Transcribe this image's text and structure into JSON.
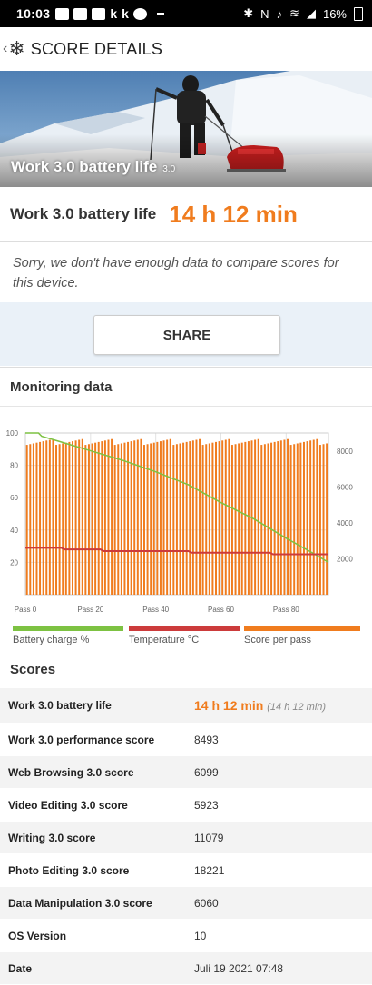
{
  "status_bar": {
    "time": "10:03",
    "battery_percent": "16%"
  },
  "app_bar": {
    "title": "SCORE DETAILS"
  },
  "hero": {
    "caption": "Work 3.0 battery life",
    "version": "3.0"
  },
  "score": {
    "label": "Work 3.0 battery life",
    "value": "14 h 12 min"
  },
  "notice": "Sorry, we don't have enough data to compare scores for this device.",
  "share_label": "SHARE",
  "monitoring": {
    "title": "Monitoring data"
  },
  "chart_data": {
    "type": "bar",
    "x_tick_labels": [
      "Pass 0",
      "Pass 20",
      "Pass 40",
      "Pass 60",
      "Pass 80"
    ],
    "x_ticks": [
      0,
      20,
      40,
      60,
      80
    ],
    "x_range": [
      0,
      93
    ],
    "left_axis_ticks": [
      "100",
      "80",
      "60",
      "40",
      "20"
    ],
    "left_axis_values": [
      100,
      80,
      60,
      40,
      20
    ],
    "left_ylim": [
      0,
      100
    ],
    "right_axis_ticks": [
      "8000",
      "6000",
      "4000",
      "2000"
    ],
    "right_axis_values": [
      8000,
      6000,
      4000,
      2000
    ],
    "right_ylim": [
      0,
      9000
    ],
    "grid": true,
    "legend_placement": "bottom",
    "series": [
      {
        "name": "Battery charge %",
        "type": "line",
        "axis": "left",
        "color": "#7dc242",
        "points": [
          [
            0,
            100
          ],
          [
            4,
            100
          ],
          [
            5,
            98
          ],
          [
            10,
            95
          ],
          [
            20,
            89
          ],
          [
            30,
            83
          ],
          [
            40,
            76
          ],
          [
            50,
            68
          ],
          [
            60,
            57
          ],
          [
            70,
            47
          ],
          [
            80,
            35
          ],
          [
            88,
            26
          ],
          [
            93,
            20
          ]
        ]
      },
      {
        "name": "Temperature °C",
        "type": "line",
        "axis": "left",
        "color": "#cc3b3b",
        "points": [
          [
            0,
            29
          ],
          [
            11,
            29
          ],
          [
            12,
            28
          ],
          [
            23,
            28
          ],
          [
            24,
            27
          ],
          [
            50,
            27
          ],
          [
            51,
            26
          ],
          [
            75,
            26
          ],
          [
            76,
            25
          ],
          [
            93,
            25
          ]
        ]
      },
      {
        "name": "Score per pass",
        "type": "bar",
        "axis": "right",
        "color": "#f07c1e",
        "value_range": [
          8300,
          8700
        ],
        "typical_value": 8500,
        "count": 93
      }
    ]
  },
  "legend": [
    {
      "label": "Battery charge %",
      "color": "#7dc242"
    },
    {
      "label": "Temperature °C",
      "color": "#cc3b3b"
    },
    {
      "label": "Score per pass",
      "color": "#f07c1e"
    }
  ],
  "scores": {
    "title": "Scores",
    "rows": [
      {
        "label": "Work 3.0 battery life",
        "value": "14 h 12 min",
        "extra": "(14 h 12 min)"
      },
      {
        "label": "Work 3.0 performance score",
        "value": "8493"
      },
      {
        "label": "Web Browsing 3.0 score",
        "value": "6099"
      },
      {
        "label": "Video Editing 3.0 score",
        "value": "5923"
      },
      {
        "label": "Writing 3.0 score",
        "value": "11079"
      },
      {
        "label": "Photo Editing 3.0 score",
        "value": "18221"
      },
      {
        "label": "Data Manipulation 3.0 score",
        "value": "6060"
      },
      {
        "label": "OS Version",
        "value": "10"
      },
      {
        "label": "Date",
        "value": "Juli 19 2021 07:48"
      }
    ]
  }
}
